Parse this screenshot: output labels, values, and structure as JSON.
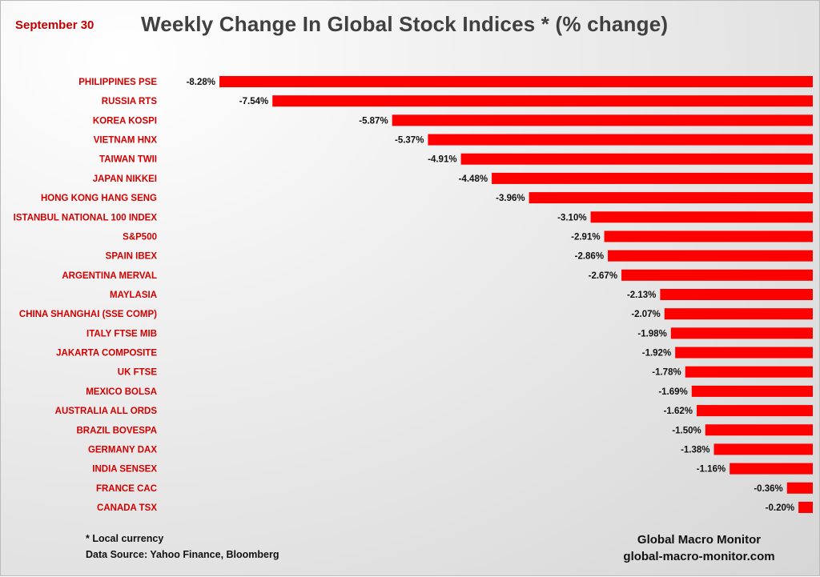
{
  "chart_data": {
    "type": "bar",
    "orientation": "horizontal",
    "title": "Weekly Change In Global Stock Indices * (% change)",
    "subtitle": "September 30",
    "xlabel": "",
    "ylabel": "",
    "xlim": [
      -8.28,
      0
    ],
    "grid": false,
    "bar_color": "#ff0000",
    "categories": [
      "PHILIPPINES PSE",
      "RUSSIA RTS",
      "KOREA KOSPI",
      "VIETNAM HNX",
      "TAIWAN  TWII",
      "JAPAN NIKKEI",
      "HONG KONG HANG SENG",
      "ISTANBUL NATIONAL 100 INDEX",
      "S&P500",
      "SPAIN IBEX",
      "ARGENTINA MERVAL",
      "MAYLASIA",
      "CHINA SHANGHAI (SSE COMP)",
      "ITALY FTSE MIB",
      "JAKARTA COMPOSITE",
      "UK FTSE",
      "MEXICO BOLSA",
      "AUSTRALIA ALL ORDS",
      "BRAZIL BOVESPA",
      "GERMANY DAX",
      "INDIA SENSEX",
      "FRANCE CAC",
      "CANADA TSX"
    ],
    "values": [
      -8.28,
      -7.54,
      -5.87,
      -5.37,
      -4.91,
      -4.48,
      -3.96,
      -3.1,
      -2.91,
      -2.86,
      -2.67,
      -2.13,
      -2.07,
      -1.98,
      -1.92,
      -1.78,
      -1.69,
      -1.62,
      -1.5,
      -1.38,
      -1.16,
      -0.36,
      -0.2
    ],
    "data_labels": [
      "-8.28%",
      "-7.54%",
      "-5.87%",
      "-5.37%",
      "-4.91%",
      "-4.48%",
      "-3.96%",
      "-3.10%",
      "-2.91%",
      "-2.86%",
      "-2.67%",
      "-2.13%",
      "-2.07%",
      "-1.98%",
      "-1.92%",
      "-1.78%",
      "-1.69%",
      "-1.62%",
      "-1.50%",
      "-1.38%",
      "-1.16%",
      "-0.36%",
      "-0.20%"
    ]
  },
  "footnote": "* Local currency",
  "source": "Data Source:  Yahoo Finance, Bloomberg",
  "brand_name": "Global Macro Monitor",
  "brand_url": "global-macro-monitor.com"
}
